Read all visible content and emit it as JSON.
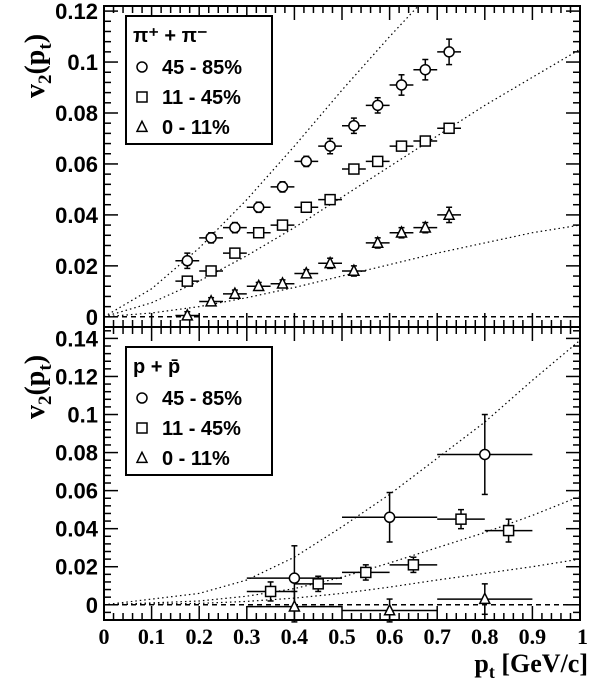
{
  "chart_data": [
    {
      "type": "scatter",
      "panel": "top",
      "ylabel": "v2(pt)",
      "ylim": [
        -0.004,
        0.122
      ],
      "xlim": [
        0,
        1
      ],
      "yticks": [
        "0",
        "0.02",
        "0.04",
        "0.06",
        "0.08",
        "0.1",
        "0.12"
      ],
      "legend": {
        "placement": "top-left",
        "title": "π⁺ + π⁻",
        "entries": [
          "45 - 85%",
          "11 - 45%",
          "0 - 11%"
        ]
      },
      "series": [
        {
          "name": "45 - 85%",
          "marker": "circle",
          "points": [
            {
              "x": 0.175,
              "y": 0.022,
              "xerr": 0.025,
              "yerr": 0.003
            },
            {
              "x": 0.225,
              "y": 0.031,
              "xerr": 0.025,
              "yerr": 0.002
            },
            {
              "x": 0.275,
              "y": 0.035,
              "xerr": 0.025,
              "yerr": 0.002
            },
            {
              "x": 0.325,
              "y": 0.043,
              "xerr": 0.025,
              "yerr": 0.002
            },
            {
              "x": 0.375,
              "y": 0.051,
              "xerr": 0.025,
              "yerr": 0.002
            },
            {
              "x": 0.425,
              "y": 0.061,
              "xerr": 0.025,
              "yerr": 0.002
            },
            {
              "x": 0.475,
              "y": 0.067,
              "xerr": 0.025,
              "yerr": 0.003
            },
            {
              "x": 0.525,
              "y": 0.075,
              "xerr": 0.025,
              "yerr": 0.003
            },
            {
              "x": 0.575,
              "y": 0.083,
              "xerr": 0.025,
              "yerr": 0.003
            },
            {
              "x": 0.625,
              "y": 0.091,
              "xerr": 0.025,
              "yerr": 0.004
            },
            {
              "x": 0.675,
              "y": 0.097,
              "xerr": 0.025,
              "yerr": 0.004
            },
            {
              "x": 0.725,
              "y": 0.104,
              "xerr": 0.025,
              "yerr": 0.005
            }
          ]
        },
        {
          "name": "11 - 45%",
          "marker": "square",
          "points": [
            {
              "x": 0.175,
              "y": 0.014,
              "xerr": 0.025,
              "yerr": 0.0015
            },
            {
              "x": 0.225,
              "y": 0.018,
              "xerr": 0.025,
              "yerr": 0.0015
            },
            {
              "x": 0.275,
              "y": 0.025,
              "xerr": 0.025,
              "yerr": 0.0015
            },
            {
              "x": 0.325,
              "y": 0.033,
              "xerr": 0.025,
              "yerr": 0.0015
            },
            {
              "x": 0.375,
              "y": 0.036,
              "xerr": 0.025,
              "yerr": 0.0015
            },
            {
              "x": 0.425,
              "y": 0.043,
              "xerr": 0.025,
              "yerr": 0.0015
            },
            {
              "x": 0.475,
              "y": 0.046,
              "xerr": 0.025,
              "yerr": 0.0015
            },
            {
              "x": 0.525,
              "y": 0.058,
              "xerr": 0.025,
              "yerr": 0.0015
            },
            {
              "x": 0.575,
              "y": 0.061,
              "xerr": 0.025,
              "yerr": 0.0015
            },
            {
              "x": 0.625,
              "y": 0.067,
              "xerr": 0.025,
              "yerr": 0.0015
            },
            {
              "x": 0.675,
              "y": 0.069,
              "xerr": 0.025,
              "yerr": 0.0015
            },
            {
              "x": 0.725,
              "y": 0.074,
              "xerr": 0.025,
              "yerr": 0.0015
            }
          ]
        },
        {
          "name": "0 - 11%",
          "marker": "triangle",
          "points": [
            {
              "x": 0.175,
              "y": 0.0005,
              "xerr": 0.025,
              "yerr": 0.0015
            },
            {
              "x": 0.225,
              "y": 0.006,
              "xerr": 0.025,
              "yerr": 0.0015
            },
            {
              "x": 0.275,
              "y": 0.009,
              "xerr": 0.025,
              "yerr": 0.0015
            },
            {
              "x": 0.325,
              "y": 0.012,
              "xerr": 0.025,
              "yerr": 0.0015
            },
            {
              "x": 0.375,
              "y": 0.013,
              "xerr": 0.025,
              "yerr": 0.0015
            },
            {
              "x": 0.425,
              "y": 0.017,
              "xerr": 0.025,
              "yerr": 0.0015
            },
            {
              "x": 0.475,
              "y": 0.021,
              "xerr": 0.025,
              "yerr": 0.002
            },
            {
              "x": 0.525,
              "y": 0.018,
              "xerr": 0.025,
              "yerr": 0.002
            },
            {
              "x": 0.575,
              "y": 0.029,
              "xerr": 0.025,
              "yerr": 0.002
            },
            {
              "x": 0.625,
              "y": 0.033,
              "xerr": 0.025,
              "yerr": 0.002
            },
            {
              "x": 0.675,
              "y": 0.035,
              "xerr": 0.025,
              "yerr": 0.002
            },
            {
              "x": 0.725,
              "y": 0.04,
              "xerr": 0.025,
              "yerr": 0.003
            }
          ]
        }
      ],
      "curves": [
        {
          "points": [
            [
              0,
              0
            ],
            [
              0.1,
              0.011
            ],
            [
              0.2,
              0.027
            ],
            [
              0.3,
              0.046
            ],
            [
              0.4,
              0.067
            ],
            [
              0.5,
              0.089
            ],
            [
              0.6,
              0.11
            ],
            [
              0.66,
              0.122
            ]
          ]
        },
        {
          "points": [
            [
              0,
              0
            ],
            [
              0.1,
              0.0055
            ],
            [
              0.2,
              0.014
            ],
            [
              0.3,
              0.024
            ],
            [
              0.4,
              0.035
            ],
            [
              0.5,
              0.047
            ],
            [
              0.6,
              0.059
            ],
            [
              0.7,
              0.071
            ],
            [
              0.8,
              0.083
            ],
            [
              0.9,
              0.094
            ],
            [
              1.0,
              0.105
            ]
          ]
        },
        {
          "points": [
            [
              0,
              0
            ],
            [
              0.1,
              0.0015
            ],
            [
              0.2,
              0.004
            ],
            [
              0.3,
              0.0075
            ],
            [
              0.4,
              0.0115
            ],
            [
              0.5,
              0.016
            ],
            [
              0.6,
              0.0205
            ],
            [
              0.7,
              0.025
            ],
            [
              0.8,
              0.029
            ],
            [
              0.9,
              0.033
            ],
            [
              1.0,
              0.036
            ]
          ]
        }
      ]
    },
    {
      "type": "scatter",
      "panel": "bottom",
      "ylabel": "v2(pt)",
      "xlabel": "pt [GeV/c]",
      "ylim": [
        -0.008,
        0.146
      ],
      "xlim": [
        0,
        1
      ],
      "yticks": [
        "0",
        "0.02",
        "0.04",
        "0.06",
        "0.08",
        "0.1",
        "0.12",
        "0.14"
      ],
      "xticks": [
        "0",
        "0.1",
        "0.2",
        "0.3",
        "0.4",
        "0.5",
        "0.6",
        "0.7",
        "0.8",
        "0.9",
        "1"
      ],
      "legend": {
        "placement": "top-left",
        "title": "p + p̄",
        "entries": [
          "45 - 85%",
          "11 - 45%",
          "0 - 11%"
        ]
      },
      "series": [
        {
          "name": "45 - 85%",
          "marker": "circle",
          "points": [
            {
              "x": 0.4,
              "y": 0.014,
              "xerr": 0.1,
              "yerr": 0.017
            },
            {
              "x": 0.6,
              "y": 0.046,
              "xerr": 0.1,
              "yerr": 0.013
            },
            {
              "x": 0.8,
              "y": 0.079,
              "xerr": 0.1,
              "yerr": 0.021
            }
          ]
        },
        {
          "name": "11 - 45%",
          "marker": "square",
          "points": [
            {
              "x": 0.35,
              "y": 0.007,
              "xerr": 0.05,
              "yerr": 0.005
            },
            {
              "x": 0.45,
              "y": 0.011,
              "xerr": 0.05,
              "yerr": 0.004
            },
            {
              "x": 0.55,
              "y": 0.017,
              "xerr": 0.05,
              "yerr": 0.004
            },
            {
              "x": 0.65,
              "y": 0.021,
              "xerr": 0.05,
              "yerr": 0.004
            },
            {
              "x": 0.75,
              "y": 0.045,
              "xerr": 0.05,
              "yerr": 0.005
            },
            {
              "x": 0.85,
              "y": 0.039,
              "xerr": 0.05,
              "yerr": 0.006
            }
          ]
        },
        {
          "name": "0 - 11%",
          "marker": "triangle",
          "points": [
            {
              "x": 0.4,
              "y": -0.001,
              "xerr": 0.1,
              "yerr": 0.008
            },
            {
              "x": 0.6,
              "y": -0.003,
              "xerr": 0.1,
              "yerr": 0.006
            },
            {
              "x": 0.8,
              "y": 0.003,
              "xerr": 0.1,
              "yerr": 0.008
            }
          ]
        }
      ],
      "curves": [
        {
          "points": [
            [
              0,
              0
            ],
            [
              0.2,
              0.006
            ],
            [
              0.3,
              0.013
            ],
            [
              0.4,
              0.025
            ],
            [
              0.5,
              0.041
            ],
            [
              0.6,
              0.058
            ],
            [
              0.7,
              0.077
            ],
            [
              0.8,
              0.096
            ],
            [
              0.9,
              0.118
            ],
            [
              1.0,
              0.139
            ]
          ]
        },
        {
          "points": [
            [
              0,
              0
            ],
            [
              0.2,
              0.002
            ],
            [
              0.3,
              0.0045
            ],
            [
              0.4,
              0.0085
            ],
            [
              0.5,
              0.0145
            ],
            [
              0.6,
              0.022
            ],
            [
              0.7,
              0.03
            ],
            [
              0.8,
              0.038
            ],
            [
              0.9,
              0.047
            ],
            [
              1.0,
              0.057
            ]
          ]
        },
        {
          "points": [
            [
              0,
              0
            ],
            [
              0.2,
              0.0007
            ],
            [
              0.3,
              0.0018
            ],
            [
              0.4,
              0.0035
            ],
            [
              0.5,
              0.006
            ],
            [
              0.6,
              0.0093
            ],
            [
              0.7,
              0.013
            ],
            [
              0.8,
              0.0165
            ],
            [
              0.9,
              0.02
            ],
            [
              1.0,
              0.024
            ]
          ]
        }
      ]
    }
  ]
}
